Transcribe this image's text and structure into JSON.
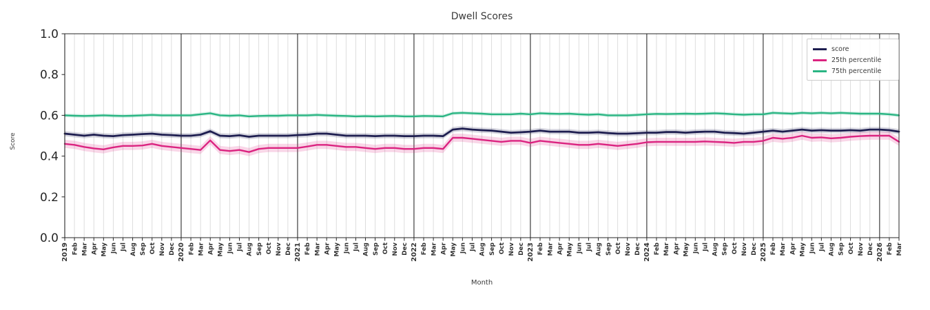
{
  "chart_data": {
    "type": "line",
    "title": "Dwell Scores",
    "xlabel": "Month",
    "ylabel": "Score",
    "ylim": [
      0.0,
      1.0
    ],
    "yticks": [
      "0.0",
      "0.2",
      "0.4",
      "0.6",
      "0.8",
      "1.0"
    ],
    "grid": "vertical gridline per month, dark separator line at each January",
    "legend_position": "upper right",
    "x_labels": [
      "2019",
      "Feb",
      "Mar",
      "Apr",
      "May",
      "Jun",
      "Jul",
      "Aug",
      "Sep",
      "Oct",
      "Nov",
      "Dec",
      "2020",
      "Feb",
      "Mar",
      "Apr",
      "May",
      "Jun",
      "Jul",
      "Aug",
      "Sep",
      "Oct",
      "Nov",
      "Dec",
      "2021",
      "Feb",
      "Mar",
      "Apr",
      "May",
      "Jun",
      "Jul",
      "Aug",
      "Sep",
      "Oct",
      "Nov",
      "Dec",
      "2022",
      "Feb",
      "Mar",
      "Apr",
      "May",
      "Jun",
      "Jul",
      "Aug",
      "Sep",
      "Oct",
      "Nov",
      "Dec",
      "2023",
      "Feb",
      "Mar",
      "Apr",
      "May",
      "Jun",
      "Jul",
      "Aug",
      "Sep",
      "Oct",
      "Nov",
      "Dec",
      "2024",
      "Feb",
      "Mar",
      "Apr",
      "May",
      "Jun",
      "Jul",
      "Aug",
      "Sep",
      "Oct",
      "Nov",
      "Dec",
      "2025",
      "Feb",
      "Mar",
      "Apr",
      "May",
      "Jun",
      "Jul",
      "Aug",
      "Sep",
      "Oct",
      "Nov",
      "Dec",
      "2026",
      "Feb",
      "Mar"
    ],
    "series": [
      {
        "name": "score",
        "color": "#1e1e50",
        "line_width": 2.8,
        "band_half_width": 0.013,
        "values": [
          0.51,
          0.505,
          0.5,
          0.505,
          0.5,
          0.498,
          0.503,
          0.505,
          0.508,
          0.51,
          0.505,
          0.503,
          0.5,
          0.5,
          0.505,
          0.522,
          0.5,
          0.498,
          0.502,
          0.495,
          0.5,
          0.5,
          0.5,
          0.5,
          0.503,
          0.505,
          0.51,
          0.51,
          0.505,
          0.5,
          0.5,
          0.5,
          0.498,
          0.5,
          0.5,
          0.498,
          0.498,
          0.5,
          0.5,
          0.498,
          0.53,
          0.535,
          0.53,
          0.527,
          0.525,
          0.52,
          0.515,
          0.517,
          0.52,
          0.525,
          0.52,
          0.52,
          0.52,
          0.515,
          0.515,
          0.517,
          0.513,
          0.51,
          0.51,
          0.512,
          0.515,
          0.515,
          0.518,
          0.518,
          0.515,
          0.518,
          0.52,
          0.52,
          0.515,
          0.513,
          0.51,
          0.515,
          0.52,
          0.525,
          0.52,
          0.525,
          0.53,
          0.525,
          0.527,
          0.525,
          0.525,
          0.527,
          0.525,
          0.53,
          0.53,
          0.527,
          0.52
        ]
      },
      {
        "name": "25th percentile",
        "color": "#db2380",
        "line_width": 2.4,
        "band_half_width": 0.02,
        "values": [
          0.46,
          0.455,
          0.445,
          0.438,
          0.433,
          0.443,
          0.45,
          0.45,
          0.452,
          0.46,
          0.45,
          0.445,
          0.44,
          0.435,
          0.43,
          0.477,
          0.43,
          0.425,
          0.43,
          0.42,
          0.435,
          0.44,
          0.44,
          0.44,
          0.44,
          0.447,
          0.455,
          0.455,
          0.45,
          0.445,
          0.445,
          0.44,
          0.435,
          0.44,
          0.44,
          0.435,
          0.435,
          0.44,
          0.44,
          0.435,
          0.49,
          0.49,
          0.485,
          0.48,
          0.475,
          0.47,
          0.475,
          0.475,
          0.465,
          0.475,
          0.47,
          0.465,
          0.46,
          0.455,
          0.455,
          0.46,
          0.455,
          0.45,
          0.455,
          0.46,
          0.468,
          0.47,
          0.47,
          0.47,
          0.47,
          0.47,
          0.472,
          0.47,
          0.468,
          0.465,
          0.47,
          0.47,
          0.475,
          0.49,
          0.485,
          0.49,
          0.5,
          0.49,
          0.492,
          0.487,
          0.49,
          0.495,
          0.498,
          0.5,
          0.5,
          0.5,
          0.47
        ]
      },
      {
        "name": "75th percentile",
        "color": "#2ab583",
        "line_width": 2.4,
        "band_half_width": 0.009,
        "values": [
          0.6,
          0.598,
          0.597,
          0.598,
          0.6,
          0.598,
          0.597,
          0.598,
          0.6,
          0.602,
          0.6,
          0.6,
          0.6,
          0.6,
          0.605,
          0.61,
          0.6,
          0.598,
          0.6,
          0.595,
          0.597,
          0.598,
          0.598,
          0.6,
          0.6,
          0.6,
          0.602,
          0.6,
          0.598,
          0.597,
          0.595,
          0.596,
          0.595,
          0.596,
          0.597,
          0.595,
          0.595,
          0.597,
          0.596,
          0.595,
          0.61,
          0.612,
          0.61,
          0.608,
          0.605,
          0.605,
          0.605,
          0.608,
          0.605,
          0.61,
          0.608,
          0.607,
          0.608,
          0.605,
          0.603,
          0.605,
          0.6,
          0.6,
          0.6,
          0.602,
          0.605,
          0.607,
          0.606,
          0.607,
          0.608,
          0.607,
          0.608,
          0.61,
          0.608,
          0.605,
          0.603,
          0.605,
          0.605,
          0.612,
          0.61,
          0.608,
          0.612,
          0.61,
          0.612,
          0.61,
          0.612,
          0.61,
          0.608,
          0.608,
          0.608,
          0.605,
          0.6
        ]
      }
    ]
  }
}
